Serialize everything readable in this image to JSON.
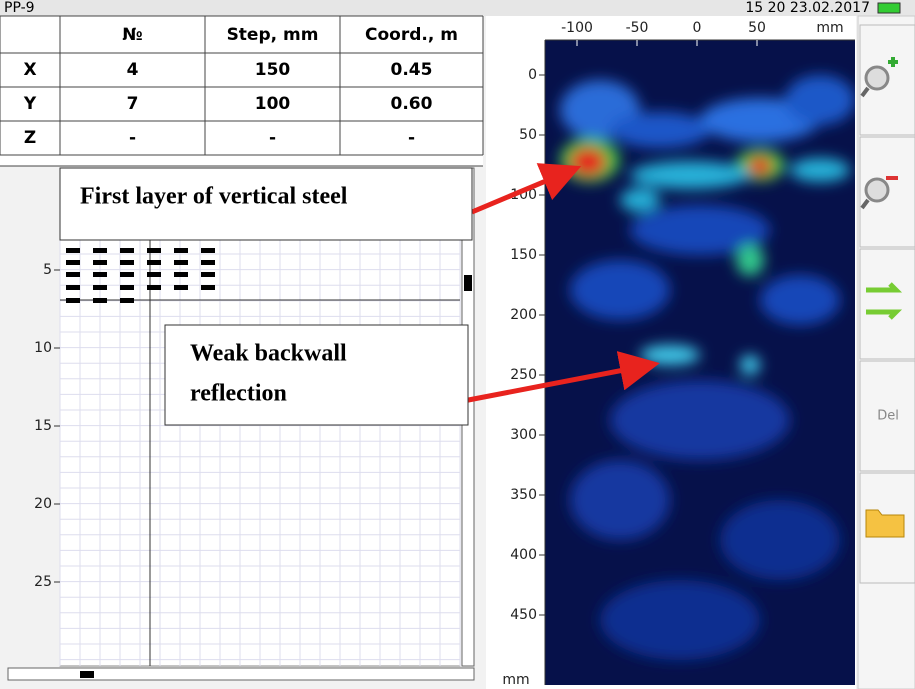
{
  "header": {
    "title": "PP-9",
    "datetime": "15 20 23.02.2017"
  },
  "table": {
    "columns": [
      "№",
      "Step, mm",
      "Coord., m"
    ],
    "rows": [
      {
        "label": "X",
        "cells": [
          "4",
          "150",
          "0.45"
        ]
      },
      {
        "label": "Y",
        "cells": [
          "7",
          "100",
          "0.60"
        ]
      },
      {
        "label": "Z",
        "cells": [
          "-",
          "-",
          "-"
        ]
      }
    ]
  },
  "left_panel": {
    "depth_ticks": [
      5,
      10,
      15,
      20,
      25
    ]
  },
  "scan": {
    "x_ticks": [
      -100,
      -50,
      0,
      50
    ],
    "x_unit": "mm",
    "y_ticks": [
      0,
      50,
      100,
      150,
      200,
      250,
      300,
      350,
      400,
      450
    ],
    "y_unit": "mm"
  },
  "annotations": [
    {
      "lines": [
        "First layer of vertical steel"
      ]
    },
    {
      "lines": [
        "Weak backwall",
        "reflection"
      ]
    }
  ],
  "sidebar": {
    "delete_label": "Del"
  }
}
